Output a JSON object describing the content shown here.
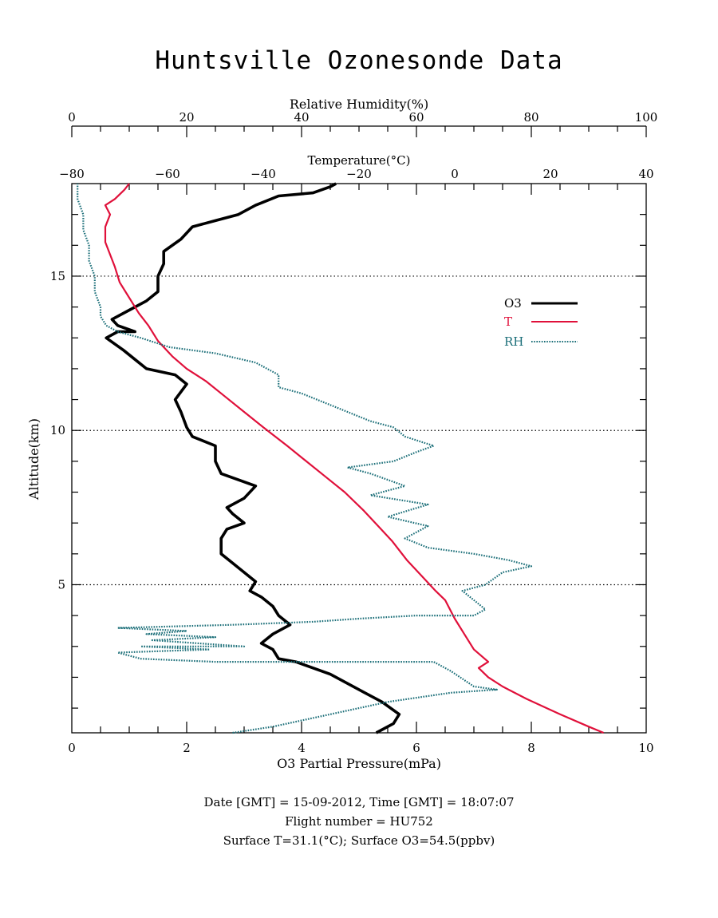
{
  "title": "Huntsville Ozonesonde Data",
  "footer": {
    "line1": "Date [GMT] = 15-09-2012,  Time [GMT] = 18:07:07",
    "line2": "Flight number = HU752",
    "line3": "Surface T=31.1(°C); Surface O3=54.5(ppbv)"
  },
  "chart_data": {
    "type": "line",
    "title": "Huntsville Ozonesonde Data",
    "ylabel": "Altitude(km)",
    "ylim": [
      0.2,
      18
    ],
    "yticks_major": [
      5,
      10,
      15
    ],
    "yticks_major_labels": [
      "5",
      "10",
      "15"
    ],
    "grid": "dotted horizontal lines at 5, 10, 15 km",
    "legend_placement": "right-middle",
    "axes": {
      "o3": {
        "label": "O3 Partial Pressure(mPa)",
        "range": [
          0,
          10
        ],
        "ticks": [
          0,
          2,
          4,
          6,
          8,
          10
        ],
        "tick_labels": [
          "0",
          "2",
          "4",
          "6",
          "8",
          "10"
        ]
      },
      "temperature": {
        "label": "Temperature(°C)",
        "range": [
          -80,
          40
        ],
        "ticks": [
          -80,
          -60,
          -40,
          -20,
          0,
          20,
          40
        ],
        "tick_labels": [
          "−80",
          "−60",
          "−40",
          "−20",
          "0",
          "20",
          "40"
        ]
      },
      "rh": {
        "label": "Relative Humidity(%)",
        "range": [
          0,
          100
        ],
        "ticks": [
          0,
          20,
          40,
          60,
          80,
          100
        ],
        "tick_labels": [
          "0",
          "20",
          "40",
          "60",
          "80",
          "100"
        ]
      }
    },
    "series": [
      {
        "name": "O3",
        "axis": "o3",
        "color": "#000000",
        "style": "thick solid",
        "points": [
          [
            5.3,
            0.2
          ],
          [
            5.6,
            0.5
          ],
          [
            5.7,
            0.8
          ],
          [
            5.4,
            1.2
          ],
          [
            5.1,
            1.5
          ],
          [
            4.8,
            1.8
          ],
          [
            4.5,
            2.1
          ],
          [
            4.2,
            2.3
          ],
          [
            3.9,
            2.5
          ],
          [
            3.6,
            2.6
          ],
          [
            3.5,
            2.9
          ],
          [
            3.3,
            3.1
          ],
          [
            3.5,
            3.4
          ],
          [
            3.8,
            3.7
          ],
          [
            3.6,
            4.0
          ],
          [
            3.5,
            4.3
          ],
          [
            3.3,
            4.6
          ],
          [
            3.1,
            4.8
          ],
          [
            3.2,
            5.1
          ],
          [
            3.0,
            5.4
          ],
          [
            2.8,
            5.7
          ],
          [
            2.6,
            6.0
          ],
          [
            2.6,
            6.5
          ],
          [
            2.7,
            6.8
          ],
          [
            3.0,
            7.0
          ],
          [
            2.8,
            7.3
          ],
          [
            2.7,
            7.5
          ],
          [
            3.0,
            7.8
          ],
          [
            3.2,
            8.2
          ],
          [
            2.9,
            8.4
          ],
          [
            2.6,
            8.6
          ],
          [
            2.5,
            9.0
          ],
          [
            2.5,
            9.5
          ],
          [
            2.1,
            9.8
          ],
          [
            2.0,
            10.1
          ],
          [
            1.9,
            10.6
          ],
          [
            1.8,
            11.0
          ],
          [
            2.0,
            11.5
          ],
          [
            1.8,
            11.8
          ],
          [
            1.3,
            12.0
          ],
          [
            1.1,
            12.3
          ],
          [
            0.9,
            12.6
          ],
          [
            0.6,
            13.0
          ],
          [
            0.8,
            13.2
          ],
          [
            1.1,
            13.2
          ],
          [
            0.8,
            13.4
          ],
          [
            0.7,
            13.6
          ],
          [
            1.0,
            13.9
          ],
          [
            1.3,
            14.2
          ],
          [
            1.5,
            14.5
          ],
          [
            1.5,
            15.0
          ],
          [
            1.6,
            15.4
          ],
          [
            1.6,
            15.8
          ],
          [
            1.9,
            16.2
          ],
          [
            2.1,
            16.6
          ],
          [
            2.5,
            16.8
          ],
          [
            2.9,
            17.0
          ],
          [
            3.2,
            17.3
          ],
          [
            3.6,
            17.6
          ],
          [
            4.2,
            17.7
          ],
          [
            4.5,
            17.9
          ],
          [
            4.6,
            18.0
          ]
        ]
      },
      {
        "name": "T",
        "axis": "temperature",
        "color": "#e0103a",
        "style": "solid with small markers",
        "points": [
          [
            31.1,
            0.2
          ],
          [
            28,
            0.4
          ],
          [
            22,
            0.8
          ],
          [
            15,
            1.3
          ],
          [
            10,
            1.7
          ],
          [
            7,
            2.0
          ],
          [
            5,
            2.3
          ],
          [
            7,
            2.5
          ],
          [
            4,
            2.9
          ],
          [
            2,
            3.4
          ],
          [
            0,
            3.9
          ],
          [
            -1,
            4.2
          ],
          [
            -2,
            4.5
          ],
          [
            -4,
            4.8
          ],
          [
            -7,
            5.3
          ],
          [
            -10,
            5.8
          ],
          [
            -13,
            6.4
          ],
          [
            -16,
            6.9
          ],
          [
            -19,
            7.4
          ],
          [
            -23,
            8.0
          ],
          [
            -27,
            8.5
          ],
          [
            -31,
            9.0
          ],
          [
            -35,
            9.5
          ],
          [
            -40,
            10.1
          ],
          [
            -44,
            10.6
          ],
          [
            -48,
            11.1
          ],
          [
            -52,
            11.6
          ],
          [
            -56,
            12.0
          ],
          [
            -59,
            12.4
          ],
          [
            -62,
            12.9
          ],
          [
            -64,
            13.4
          ],
          [
            -66,
            13.8
          ],
          [
            -68,
            14.3
          ],
          [
            -70,
            14.8
          ],
          [
            -71,
            15.3
          ],
          [
            -72,
            15.7
          ],
          [
            -73,
            16.1
          ],
          [
            -73,
            16.6
          ],
          [
            -72,
            17.0
          ],
          [
            -73,
            17.3
          ],
          [
            -71,
            17.5
          ],
          [
            -69,
            17.8
          ],
          [
            -68,
            18.0
          ]
        ]
      },
      {
        "name": "RH",
        "axis": "rh",
        "color": "#1a6e78",
        "style": "dotted",
        "points": [
          [
            28,
            0.2
          ],
          [
            35,
            0.4
          ],
          [
            45,
            0.8
          ],
          [
            55,
            1.2
          ],
          [
            66,
            1.5
          ],
          [
            74,
            1.6
          ],
          [
            70,
            1.7
          ],
          [
            66,
            2.2
          ],
          [
            63,
            2.5
          ],
          [
            55,
            2.5
          ],
          [
            40,
            2.5
          ],
          [
            25,
            2.5
          ],
          [
            12,
            2.6
          ],
          [
            8,
            2.8
          ],
          [
            24,
            2.9
          ],
          [
            12,
            3.0
          ],
          [
            30,
            3.0
          ],
          [
            14,
            3.2
          ],
          [
            25,
            3.3
          ],
          [
            13,
            3.4
          ],
          [
            20,
            3.5
          ],
          [
            8,
            3.6
          ],
          [
            28,
            3.7
          ],
          [
            42,
            3.8
          ],
          [
            50,
            3.9
          ],
          [
            60,
            4.0
          ],
          [
            70,
            4.0
          ],
          [
            72,
            4.2
          ],
          [
            70,
            4.5
          ],
          [
            68,
            4.8
          ],
          [
            72,
            5.0
          ],
          [
            75,
            5.4
          ],
          [
            80,
            5.6
          ],
          [
            76,
            5.8
          ],
          [
            70,
            6.0
          ],
          [
            62,
            6.2
          ],
          [
            58,
            6.5
          ],
          [
            62,
            6.9
          ],
          [
            55,
            7.2
          ],
          [
            62,
            7.6
          ],
          [
            52,
            7.9
          ],
          [
            58,
            8.2
          ],
          [
            52,
            8.6
          ],
          [
            48,
            8.8
          ],
          [
            56,
            9.0
          ],
          [
            60,
            9.3
          ],
          [
            63,
            9.5
          ],
          [
            58,
            9.8
          ],
          [
            56,
            10.1
          ],
          [
            52,
            10.3
          ],
          [
            48,
            10.6
          ],
          [
            44,
            10.9
          ],
          [
            40,
            11.2
          ],
          [
            36,
            11.4
          ],
          [
            36,
            11.8
          ],
          [
            32,
            12.2
          ],
          [
            25,
            12.5
          ],
          [
            17,
            12.7
          ],
          [
            12,
            13.0
          ],
          [
            8,
            13.2
          ],
          [
            6,
            13.4
          ],
          [
            5,
            13.7
          ],
          [
            5,
            14.0
          ],
          [
            4,
            14.5
          ],
          [
            4,
            15.0
          ],
          [
            3,
            15.5
          ],
          [
            3,
            16.0
          ],
          [
            2,
            16.5
          ],
          [
            2,
            17.0
          ],
          [
            1,
            17.5
          ],
          [
            1,
            18.0
          ]
        ]
      }
    ]
  }
}
